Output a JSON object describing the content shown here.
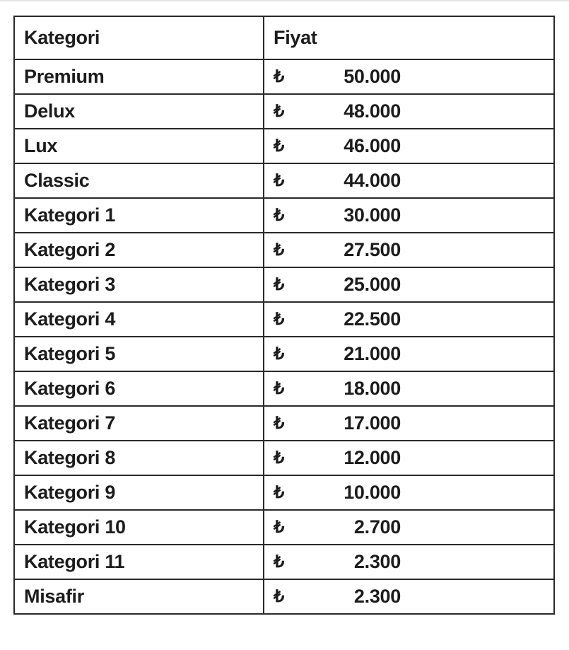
{
  "table": {
    "headers": [
      "Kategori",
      "Fiyat"
    ],
    "currency_symbol": "₺",
    "rows": [
      {
        "category": "Premium",
        "price": "50.000"
      },
      {
        "category": "Delux",
        "price": "48.000"
      },
      {
        "category": "Lux",
        "price": "46.000"
      },
      {
        "category": "Classic",
        "price": "44.000"
      },
      {
        "category": "Kategori 1",
        "price": "30.000"
      },
      {
        "category": "Kategori 2",
        "price": "27.500"
      },
      {
        "category": "Kategori 3",
        "price": "25.000"
      },
      {
        "category": "Kategori 4",
        "price": "22.500"
      },
      {
        "category": "Kategori 5",
        "price": "21.000"
      },
      {
        "category": "Kategori 6",
        "price": "18.000"
      },
      {
        "category": "Kategori 7",
        "price": "17.000"
      },
      {
        "category": "Kategori 8",
        "price": "12.000"
      },
      {
        "category": "Kategori 9",
        "price": "10.000"
      },
      {
        "category": "Kategori 10",
        "price": "2.700"
      },
      {
        "category": "Kategori 11",
        "price": "2.300"
      },
      {
        "category": "Misafir",
        "price": "2.300"
      }
    ]
  }
}
